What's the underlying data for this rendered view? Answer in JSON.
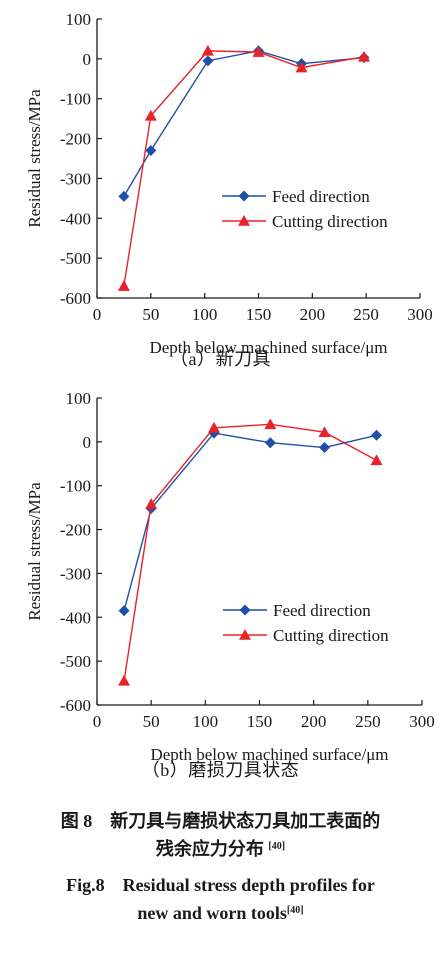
{
  "chart_data": [
    {
      "type": "line",
      "subcaption": "（a）新刀具",
      "xlabel": "Depth below machined surface/μm",
      "ylabel": "Residual stress/MPa",
      "xlim": [
        0,
        300
      ],
      "ylim": [
        -600,
        100
      ],
      "xticks": [
        0,
        50,
        100,
        150,
        200,
        250,
        300
      ],
      "yticks": [
        100,
        0,
        -100,
        -200,
        -300,
        -400,
        -500,
        -600
      ],
      "legend_position": "center-right",
      "series": [
        {
          "name": "Feed direction",
          "color": "#1f4fa8",
          "marker": "diamond",
          "x": [
            25,
            50,
            103,
            150,
            190,
            248
          ],
          "y": [
            -345,
            -230,
            -5,
            20,
            -12,
            3
          ]
        },
        {
          "name": "Cutting direction",
          "color": "#e8232a",
          "marker": "triangle",
          "x": [
            25,
            50,
            103,
            150,
            190,
            248
          ],
          "y": [
            -570,
            -143,
            20,
            17,
            -22,
            5
          ]
        }
      ]
    },
    {
      "type": "line",
      "subcaption": "（b）磨损刀具状态",
      "xlabel": "Depth below machined surface/μm",
      "ylabel": "Residual stress/MPa",
      "xlim": [
        0,
        300
      ],
      "ylim": [
        -600,
        100
      ],
      "xticks": [
        0,
        50,
        100,
        150,
        200,
        250,
        300
      ],
      "yticks": [
        100,
        0,
        -100,
        -200,
        -300,
        -400,
        -500,
        -600
      ],
      "legend_position": "center-right",
      "series": [
        {
          "name": "Feed direction",
          "color": "#1f4fa8",
          "marker": "diamond",
          "x": [
            25,
            50,
            108,
            160,
            210,
            258
          ],
          "y": [
            -385,
            -152,
            20,
            -2,
            -13,
            15
          ]
        },
        {
          "name": "Cutting direction",
          "color": "#e8232a",
          "marker": "triangle",
          "x": [
            25,
            50,
            108,
            160,
            210,
            258
          ],
          "y": [
            -545,
            -142,
            32,
            40,
            22,
            -42
          ]
        }
      ]
    }
  ],
  "caption": {
    "zh_line1": "图 8　新刀具与磨损状态刀具加工表面的",
    "zh_line2": "残余应力分布",
    "zh_ref": "[40]",
    "en_line1": "Fig.8　Residual stress depth profiles for",
    "en_line2": "new and worn tools",
    "en_ref": "[40]"
  }
}
